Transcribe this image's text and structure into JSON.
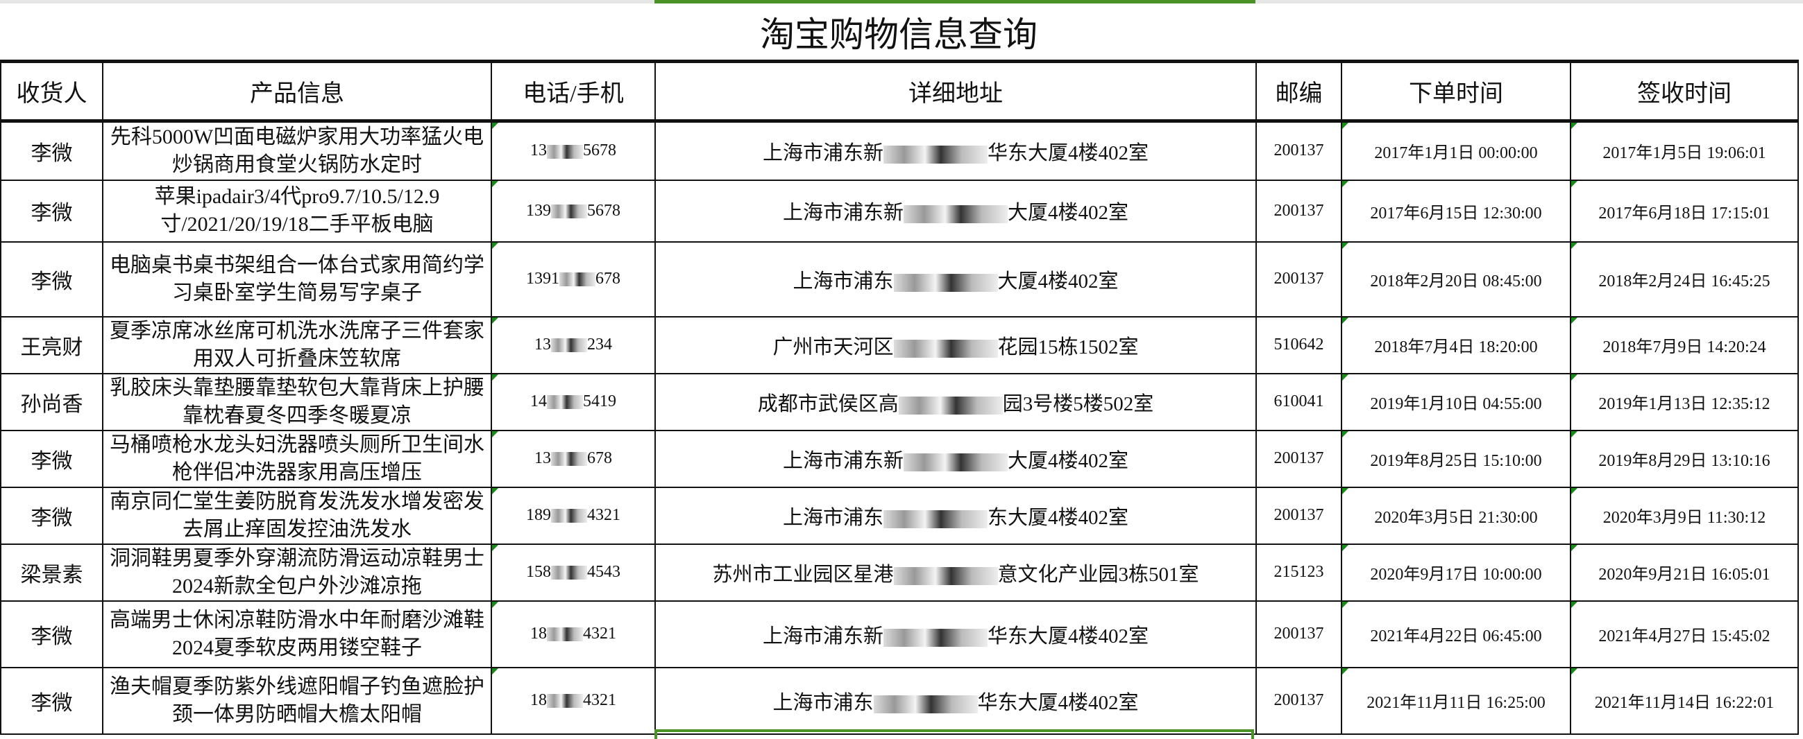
{
  "sheet_title": "淘宝购物信息查询",
  "headers": [
    "收货人",
    "产品信息",
    "电话/手机",
    "详细地址",
    "邮编",
    "下单时间",
    "签收时间"
  ],
  "rows": [
    {
      "name": "李微",
      "product": "先科5000W凹面电磁炉家用大功率猛火电炒锅商用食堂火锅防水定时",
      "phone_prefix": "13",
      "phone_suffix": "5678",
      "addr_prefix": "上海市浦东新",
      "addr_suffix": "华东大厦4楼402室",
      "zip": "200137",
      "order_time": "2017年1月1日 00:00:00",
      "sign_time": "2017年1月5日 19:06:01"
    },
    {
      "name": "李微",
      "product": "苹果ipadair3/4代pro9.7/10.5/12.9寸/2021/20/19/18二手平板电脑",
      "phone_prefix": "139",
      "phone_suffix": "5678",
      "addr_prefix": "上海市浦东新",
      "addr_suffix": "大厦4楼402室",
      "zip": "200137",
      "order_time": "2017年6月15日 12:30:00",
      "sign_time": "2017年6月18日 17:15:01"
    },
    {
      "name": "李微",
      "product": "电脑桌书桌书架组合一体台式家用简约学习桌卧室学生简易写字桌子",
      "phone_prefix": "1391",
      "phone_suffix": "678",
      "addr_prefix": "上海市浦东",
      "addr_suffix": "大厦4楼402室",
      "zip": "200137",
      "order_time": "2018年2月20日 08:45:00",
      "sign_time": "2018年2月24日 16:45:25"
    },
    {
      "name": "王亮财",
      "product": "夏季凉席冰丝席可机洗水洗席子三件套家用双人可折叠床笠软席",
      "phone_prefix": "13",
      "phone_suffix": "234",
      "addr_prefix": "广州市天河区",
      "addr_suffix": "花园15栋1502室",
      "zip": "510642",
      "order_time": "2018年7月4日 18:20:00",
      "sign_time": "2018年7月9日 14:20:24"
    },
    {
      "name": "孙尚香",
      "product": "乳胶床头靠垫腰靠垫软包大靠背床上护腰靠枕春夏冬四季冬暖夏凉",
      "phone_prefix": "14",
      "phone_suffix": "5419",
      "addr_prefix": "成都市武侯区高",
      "addr_suffix": "园3号楼5楼502室",
      "zip": "610041",
      "order_time": "2019年1月10日 04:55:00",
      "sign_time": "2019年1月13日 12:35:12"
    },
    {
      "name": "李微",
      "product": "马桶喷枪水龙头妇洗器喷头厕所卫生间水枪伴侣冲洗器家用高压增压",
      "phone_prefix": "13",
      "phone_suffix": "678",
      "addr_prefix": "上海市浦东新",
      "addr_suffix": "大厦4楼402室",
      "zip": "200137",
      "order_time": "2019年8月25日 15:10:00",
      "sign_time": "2019年8月29日 13:10:16"
    },
    {
      "name": "李微",
      "product": "南京同仁堂生姜防脱育发洗发水增发密发去屑止痒固发控油洗发水",
      "phone_prefix": "189",
      "phone_suffix": "4321",
      "addr_prefix": "上海市浦东",
      "addr_suffix": "东大厦4楼402室",
      "zip": "200137",
      "order_time": "2020年3月5日 21:30:00",
      "sign_time": "2020年3月9日 11:30:12"
    },
    {
      "name": "梁景素",
      "product": "洞洞鞋男夏季外穿潮流防滑运动凉鞋男士2024新款全包户外沙滩凉拖",
      "phone_prefix": "158",
      "phone_suffix": "4543",
      "addr_prefix": "苏州市工业园区星港",
      "addr_suffix": "意文化产业园3栋501室",
      "zip": "215123",
      "order_time": "2020年9月17日 10:00:00",
      "sign_time": "2020年9月21日 16:05:01"
    },
    {
      "name": "李微",
      "product": "高端男士休闲凉鞋防滑水中年耐磨沙滩鞋2024夏季软皮两用镂空鞋子",
      "phone_prefix": "18",
      "phone_suffix": "4321",
      "addr_prefix": "上海市浦东新",
      "addr_suffix": "华东大厦4楼402室",
      "zip": "200137",
      "order_time": "2021年4月22日 06:45:00",
      "sign_time": "2021年4月27日 15:45:02"
    },
    {
      "name": "李微",
      "product": "渔夫帽夏季防紫外线遮阳帽子钓鱼遮脸护颈一体男防晒帽大檐太阳帽",
      "phone_prefix": "18",
      "phone_suffix": "4321",
      "addr_prefix": "上海市浦东",
      "addr_suffix": "华东大厦4楼402室",
      "zip": "200137",
      "order_time": "2021年11月11日 16:25:00",
      "sign_time": "2021年11月14日 16:22:01"
    }
  ],
  "colors": {
    "selection": "#4a9127",
    "text_marker": "#1a8a1a",
    "grid": "#111111"
  }
}
